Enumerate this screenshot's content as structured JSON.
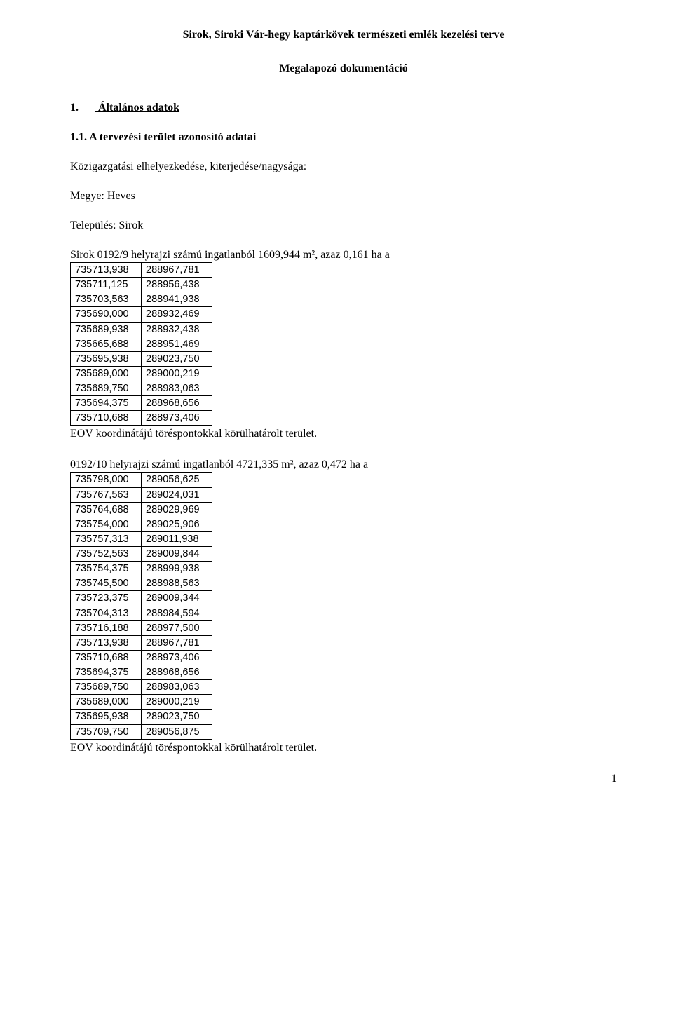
{
  "title": "Sirok, Siroki Vár-hegy kaptárkövek természeti emlék kezelési terve",
  "subtitle": "Megalapozó dokumentáció",
  "section1": {
    "num": "1.",
    "label": "Általános adatok"
  },
  "section11": {
    "num": "1.1.",
    "label": "A tervezési terület azonosító adatai"
  },
  "intro1": "Közigazgatási elhelyezkedése, kiterjedése/nagysága:",
  "megye": "Megye: Heves",
  "telepules": "Település: Sirok",
  "parcel1_desc": "Sirok 0192/9 helyrajzi számú ingatlanból 1609,944 m², azaz 0,161 ha a",
  "table1": {
    "rows": [
      [
        "735713,938",
        "288967,781"
      ],
      [
        "735711,125",
        "288956,438"
      ],
      [
        "735703,563",
        "288941,938"
      ],
      [
        "735690,000",
        "288932,469"
      ],
      [
        "735689,938",
        "288932,438"
      ],
      [
        "735665,688",
        "288951,469"
      ],
      [
        "735695,938",
        "289023,750"
      ],
      [
        "735689,000",
        "289000,219"
      ],
      [
        "735689,750",
        "288983,063"
      ],
      [
        "735694,375",
        "288968,656"
      ],
      [
        "735710,688",
        "288973,406"
      ]
    ]
  },
  "footer1": "EOV koordinátájú töréspontokkal körülhatárolt terület.",
  "parcel2_desc": "0192/10 helyrajzi számú ingatlanból 4721,335 m², azaz 0,472 ha a",
  "table2": {
    "rows": [
      [
        "735798,000",
        "289056,625"
      ],
      [
        "735767,563",
        "289024,031"
      ],
      [
        "735764,688",
        "289029,969"
      ],
      [
        "735754,000",
        "289025,906"
      ],
      [
        "735757,313",
        "289011,938"
      ],
      [
        "735752,563",
        "289009,844"
      ],
      [
        "735754,375",
        "288999,938"
      ],
      [
        "735745,500",
        "288988,563"
      ],
      [
        "735723,375",
        "289009,344"
      ],
      [
        "735704,313",
        "288984,594"
      ],
      [
        "735716,188",
        "288977,500"
      ],
      [
        "735713,938",
        "288967,781"
      ],
      [
        "735710,688",
        "288973,406"
      ],
      [
        "735694,375",
        "288968,656"
      ],
      [
        "735689,750",
        "288983,063"
      ],
      [
        "735689,000",
        "289000,219"
      ],
      [
        "735695,938",
        "289023,750"
      ],
      [
        "735709,750",
        "289056,875"
      ]
    ]
  },
  "footer2": "EOV koordinátájú töréspontokkal körülhatárolt terület.",
  "page_number": "1"
}
